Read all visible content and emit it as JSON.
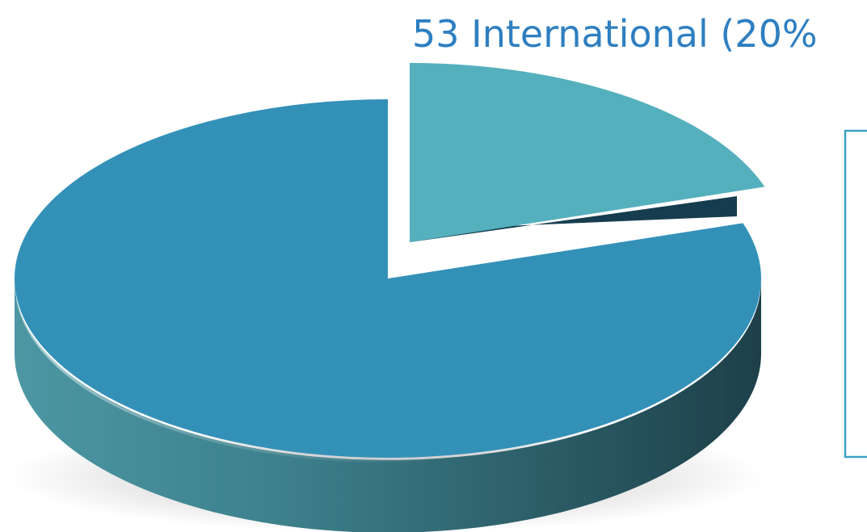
{
  "chart_data": {
    "type": "pie",
    "style": "3d",
    "slices": [
      {
        "value": 20,
        "color": "#55b0bd",
        "data_label": ""
      },
      {
        "value": 80,
        "color": "#3391b8",
        "data_label": "53 International (20%"
      }
    ],
    "legend": {
      "visible": true,
      "placement": "right",
      "entries": []
    }
  }
}
